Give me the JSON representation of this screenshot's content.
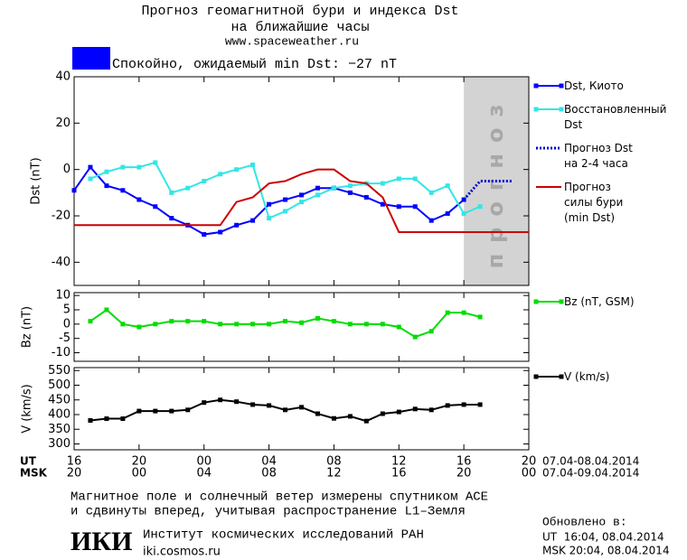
{
  "header": {
    "title": [
      "Прогноз геомагнитной бури и индекса Dst",
      "на ближайшие часы"
    ],
    "url": "www.spaceweather.ru"
  },
  "status": {
    "color": "#0000ff",
    "text": "Спокойно, ожидаемый min Dst: −27 nT"
  },
  "chart_data": [
    {
      "type": "line",
      "y_label": "Dst (nT)",
      "xlim": [
        0,
        28
      ],
      "ylim": [
        -50,
        40
      ],
      "yticks": [
        -40,
        -20,
        0,
        20,
        40
      ],
      "forecast_region": [
        24,
        28
      ],
      "forecast_label": "прогноз",
      "forecast_color": "#d3d3d3",
      "series": [
        {
          "name": "Dst, Киото",
          "color": "#0000ff",
          "markers": true,
          "line_style": "solid",
          "x": [
            0,
            1,
            2,
            3,
            4,
            5,
            6,
            7,
            8,
            9,
            10,
            11,
            12,
            13,
            14,
            15,
            16,
            17,
            18,
            19,
            20,
            21,
            22,
            23,
            24
          ],
          "values": [
            -9,
            1,
            -7,
            -9,
            -13,
            -16,
            -21,
            -24,
            -28,
            -27,
            -24,
            -22,
            -15,
            -13,
            -11,
            -8,
            -8,
            -10,
            -12,
            -15,
            -16,
            -16,
            -22,
            -19,
            -13
          ]
        },
        {
          "name": "Восстановленный\nDst",
          "color": "#33e6e6",
          "markers": true,
          "line_style": "solid",
          "x": [
            1,
            2,
            3,
            4,
            5,
            6,
            7,
            8,
            9,
            10,
            11,
            12,
            13,
            14,
            15,
            16,
            17,
            18,
            19,
            20,
            21,
            22,
            23,
            24,
            25
          ],
          "values": [
            -4,
            -1,
            1,
            1,
            3,
            -10,
            -8,
            -5,
            -2,
            0,
            2,
            -21,
            -18,
            -14,
            -11,
            -8,
            -7,
            -6,
            -6,
            -4,
            -4,
            -10,
            -7,
            -19,
            -16
          ]
        },
        {
          "name": "Прогноз Dst\nна 2-4 часа",
          "color": "#0000cc",
          "markers": false,
          "line_style": "dotted",
          "x": [
            24,
            25,
            26,
            27
          ],
          "values": [
            -13,
            -5,
            -5,
            -5
          ]
        },
        {
          "name": "Прогноз\nсилы бури\n(min Dst)",
          "color": "#cc0000",
          "markers": false,
          "line_style": "solid",
          "x": [
            0,
            9,
            10,
            11,
            12,
            13,
            14,
            15,
            16,
            17,
            18,
            19,
            20,
            28
          ],
          "values": [
            -24,
            -24,
            -14,
            -12,
            -6,
            -5,
            -2,
            0,
            0,
            -5,
            -6,
            -12,
            -27,
            -27
          ]
        }
      ]
    },
    {
      "type": "line",
      "y_label": "Bz (nT)",
      "xlim": [
        0,
        28
      ],
      "ylim": [
        -13,
        11
      ],
      "yticks": [
        -10,
        -5,
        0,
        5,
        10
      ],
      "series": [
        {
          "name": "Bz (nT, GSM)",
          "color": "#00dd00",
          "markers": true,
          "line_style": "solid",
          "x": [
            1,
            2,
            3,
            4,
            5,
            6,
            7,
            8,
            9,
            10,
            11,
            12,
            13,
            14,
            15,
            16,
            17,
            18,
            19,
            20,
            21,
            22,
            23,
            24,
            25
          ],
          "values": [
            1,
            5,
            0,
            -1,
            0,
            1,
            1,
            1,
            0,
            0,
            0,
            0,
            1,
            0.5,
            2,
            1,
            0,
            0,
            0,
            -1,
            -4.5,
            -2.5,
            4,
            4,
            2.5
          ]
        }
      ]
    },
    {
      "type": "line",
      "y_label": "V (km/s)",
      "xlim": [
        0,
        28
      ],
      "ylim": [
        280,
        560
      ],
      "yticks": [
        300,
        350,
        400,
        450,
        500,
        550
      ],
      "xticks": [
        {
          "value": 0,
          "label": "16"
        },
        {
          "value": 4,
          "label": "20"
        },
        {
          "value": 8,
          "label": "00"
        },
        {
          "value": 12,
          "label": "04"
        },
        {
          "value": 16,
          "label": "08"
        },
        {
          "value": 20,
          "label": "12"
        },
        {
          "value": 24,
          "label": "16"
        },
        {
          "value": 28,
          "label": "20"
        }
      ],
      "xticks_msk": [
        {
          "value": 0,
          "label": "20"
        },
        {
          "value": 4,
          "label": "00"
        },
        {
          "value": 8,
          "label": "04"
        },
        {
          "value": 12,
          "label": "08"
        },
        {
          "value": 16,
          "label": "12"
        },
        {
          "value": 20,
          "label": "16"
        },
        {
          "value": 24,
          "label": "20"
        },
        {
          "value": 28,
          "label": "00"
        }
      ],
      "ut_label": "UT",
      "ut_range": "07.04-08.04.2014",
      "msk_label": "MSK",
      "msk_range": "07.04-09.04.2014",
      "series": [
        {
          "name": "V (km/s)",
          "color": "#000000",
          "markers": true,
          "line_style": "solid",
          "x": [
            1,
            2,
            3,
            4,
            5,
            6,
            7,
            8,
            9,
            10,
            11,
            12,
            13,
            14,
            15,
            16,
            17,
            18,
            19,
            20,
            21,
            22,
            23,
            24,
            25
          ],
          "values": [
            380,
            386,
            386,
            412,
            412,
            412,
            416,
            441,
            450,
            444,
            434,
            431,
            416,
            425,
            403,
            387,
            394,
            378,
            403,
            409,
            419,
            416,
            431,
            434,
            434
          ]
        }
      ]
    }
  ],
  "footer": {
    "note": [
      "Магнитное поле и солнечный ветер измерены спутником ACE",
      "и сдвинуты вперед, учитывая распространение L1–Земля"
    ],
    "logo": "ИКИ",
    "institute": "Институт космических исследований РАН",
    "site": "iki.cosmos.ru",
    "updated": "Обновлено в:",
    "updated_ut": "UT  16:04, 08.04.2014",
    "updated_msk": "MSK 20:04, 08.04.2014"
  }
}
